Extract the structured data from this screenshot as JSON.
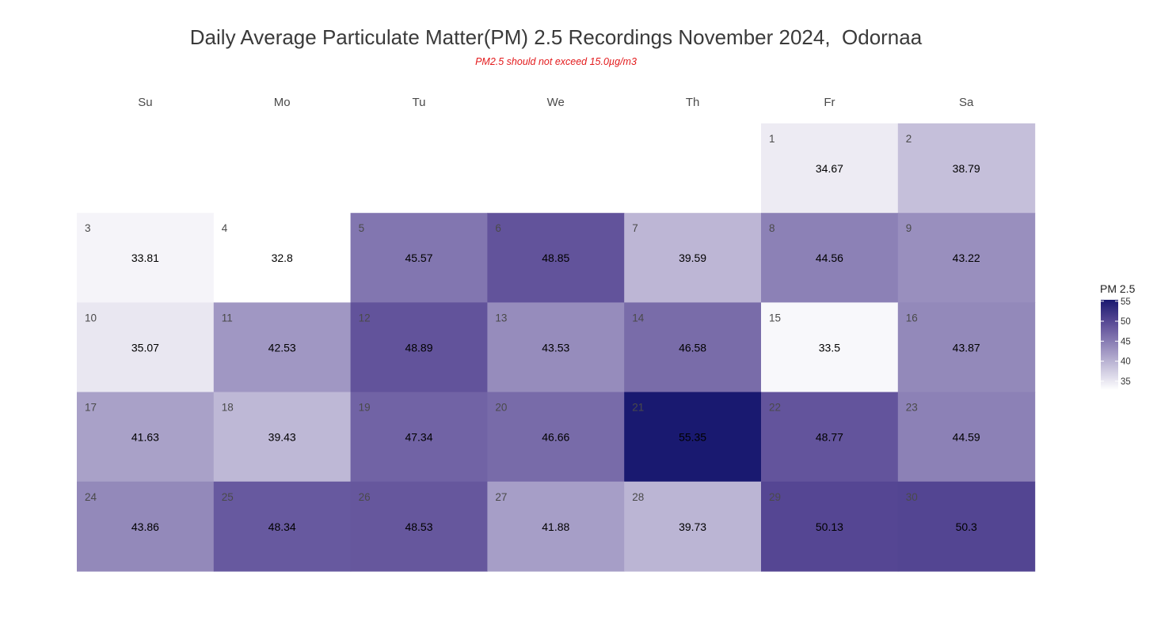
{
  "chart_data": {
    "type": "heatmap",
    "title": "Daily Average Particulate Matter(PM) 2.5 Recordings November 2024,  Odornaa",
    "subtitle": "PM2.5 should not exceed 15.0µg/m3",
    "weekdays": [
      "Su",
      "Mo",
      "Tu",
      "We",
      "Th",
      "Fr",
      "Sa"
    ],
    "first_weekday_index": 5,
    "days": [
      1,
      2,
      3,
      4,
      5,
      6,
      7,
      8,
      9,
      10,
      11,
      12,
      13,
      14,
      15,
      16,
      17,
      18,
      19,
      20,
      21,
      22,
      23,
      24,
      25,
      26,
      27,
      28,
      29,
      30
    ],
    "values": [
      34.67,
      38.79,
      33.81,
      32.8,
      45.57,
      48.85,
      39.59,
      44.56,
      43.22,
      35.07,
      42.53,
      48.89,
      43.53,
      46.58,
      33.5,
      43.87,
      41.63,
      39.43,
      47.34,
      46.66,
      55.35,
      48.77,
      44.59,
      43.86,
      48.34,
      48.53,
      41.88,
      39.73,
      50.13,
      50.3
    ],
    "legend": {
      "title": "PM 2.5",
      "ticks": [
        35,
        40,
        45,
        50,
        55
      ],
      "range": [
        32.8,
        55.35
      ],
      "low_color": "#ffffff",
      "mid_color": "#5a4a96",
      "high_color": "#191970"
    }
  }
}
